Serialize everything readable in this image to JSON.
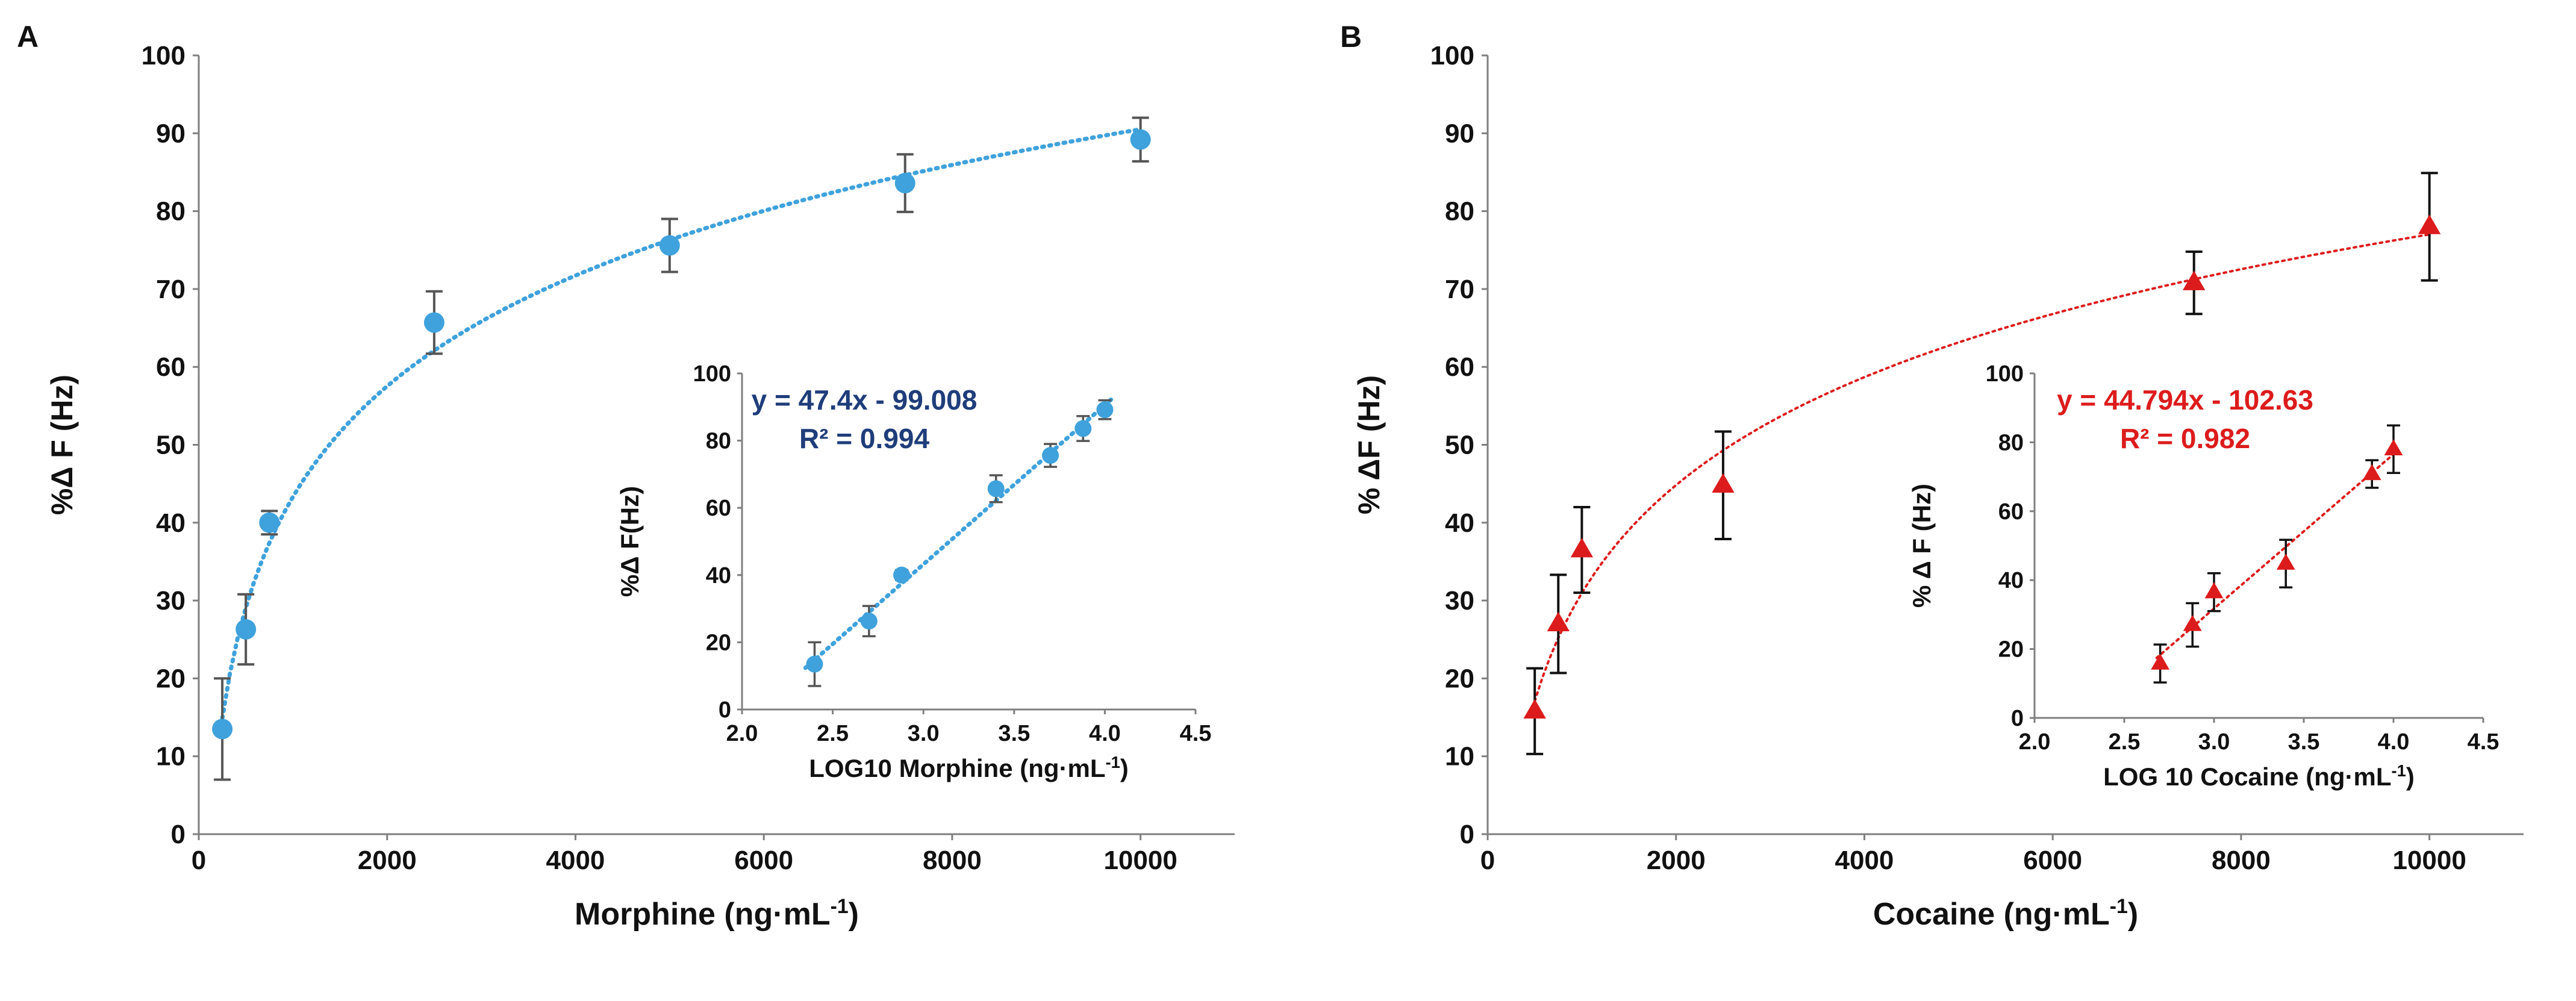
{
  "chart_data": [
    {
      "panel_label": "A",
      "type": "scatter",
      "title": "",
      "xlabel": "Morphine (ng·mL",
      "xlabel_sup": "-1",
      "xlabel_end": ")",
      "ylabel": "%Δ F (Hz)",
      "xlim": [
        0,
        11000
      ],
      "ylim": [
        0,
        100
      ],
      "xticks": [
        0,
        2000,
        4000,
        6000,
        8000,
        10000
      ],
      "yticks": [
        0,
        10,
        20,
        30,
        40,
        50,
        60,
        70,
        80,
        90,
        100
      ],
      "color": "#3fa2dc",
      "error_color": "#555555",
      "marker": "circle",
      "x": [
        250,
        500,
        750,
        2500,
        5000,
        7500,
        10000
      ],
      "y": [
        13.5,
        26.3,
        40.0,
        65.7,
        75.6,
        83.6,
        89.2
      ],
      "error": [
        6.5,
        4.5,
        1.5,
        4.0,
        3.4,
        3.7,
        2.8
      ],
      "trendline": {
        "kind": "logarithmic",
        "a": 20.5,
        "b": -98.3,
        "x_from": 250,
        "x_to": 10000
      },
      "inset": {
        "type": "scatter",
        "xlabel": "LOG10 Morphine (ng·mL",
        "xlabel_sup": "-1",
        "xlabel_end": ")",
        "ylabel": "%Δ F(Hz)",
        "xlim": [
          2.0,
          4.5
        ],
        "ylim": [
          0,
          100
        ],
        "xticks": [
          "2.0",
          "2.5",
          "3.0",
          "3.5",
          "4.0",
          "4.5"
        ],
        "yticks": [
          0,
          20,
          40,
          60,
          80,
          100
        ],
        "x": [
          2.4,
          2.7,
          2.88,
          3.4,
          3.7,
          3.88,
          4.0
        ],
        "y": [
          13.5,
          26.3,
          40.0,
          65.7,
          75.6,
          83.6,
          89.2
        ],
        "error": [
          6.5,
          4.5,
          1.5,
          4.0,
          3.4,
          3.7,
          2.8
        ],
        "equation": "y = 47.4x - 99.008",
        "r_squared": "R² = 0.994",
        "annotation_color": "#1f3d7a",
        "fit": {
          "slope": 47.4,
          "intercept": -99.008,
          "x_from": 2.35,
          "x_to": 4.05
        }
      }
    },
    {
      "panel_label": "B",
      "type": "scatter",
      "title": "",
      "xlabel": "Cocaine (ng·mL",
      "xlabel_sup": "-1",
      "xlabel_end": ")",
      "ylabel": "% ΔF (Hz)",
      "xlim": [
        0,
        11000
      ],
      "ylim": [
        0,
        100
      ],
      "xticks": [
        0,
        2000,
        4000,
        6000,
        8000,
        10000
      ],
      "yticks": [
        0,
        10,
        20,
        30,
        40,
        50,
        60,
        70,
        80,
        90,
        100
      ],
      "color": "#dc1c1c",
      "error_color": "#111111",
      "marker": "triangle",
      "x": [
        500,
        750,
        1000,
        2500,
        7500,
        10000
      ],
      "y": [
        15.8,
        27.0,
        36.5,
        44.8,
        70.8,
        78.0
      ],
      "error": [
        5.5,
        6.3,
        5.5,
        6.9,
        4.0,
        6.9
      ],
      "trendline": {
        "kind": "logarithmic",
        "a": 20.0,
        "b": -107.2,
        "x_from": 500,
        "x_to": 10000
      },
      "inset": {
        "type": "scatter",
        "xlabel": "LOG 10 Cocaine (ng·mL",
        "xlabel_sup": "-1",
        "xlabel_end": ")",
        "ylabel": "% Δ F (Hz)",
        "xlim": [
          2.0,
          4.5
        ],
        "ylim": [
          0,
          100
        ],
        "xticks": [
          "2.0",
          "2.5",
          "3.0",
          "3.5",
          "4.0",
          "4.5"
        ],
        "yticks": [
          0,
          20,
          40,
          60,
          80,
          100
        ],
        "x": [
          2.7,
          2.88,
          3.0,
          3.4,
          3.88,
          4.0
        ],
        "y": [
          15.8,
          27.0,
          36.5,
          44.8,
          70.8,
          78.0
        ],
        "error": [
          5.5,
          6.3,
          5.5,
          6.9,
          4.0,
          6.9
        ],
        "equation": "y = 44.794x - 102.63",
        "r_squared": "R² = 0.982",
        "annotation_color": "#dc1c1c",
        "fit": {
          "slope": 44.794,
          "intercept": -102.63,
          "x_from": 2.68,
          "x_to": 4.02
        }
      }
    }
  ]
}
